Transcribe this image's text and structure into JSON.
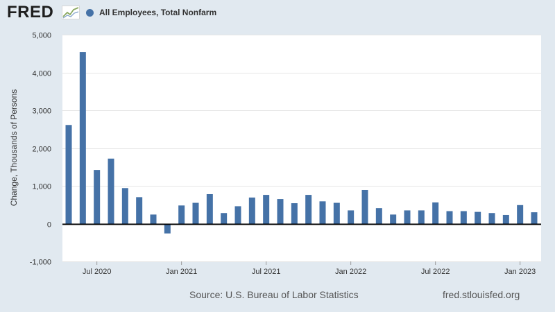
{
  "logo": {
    "text": "FRED"
  },
  "legend": {
    "label": "All Employees, Total Nonfarm",
    "color": "#4572a7"
  },
  "footer": {
    "source": "Source: U.S. Bureau of Labor Statistics",
    "url": "fred.stlouisfed.org"
  },
  "chart_data": {
    "type": "bar",
    "title": "",
    "xlabel": "",
    "ylabel": "Change, Thousands of Persons",
    "ylim": [
      -1000,
      5000
    ],
    "grid": true,
    "yticks": [
      -1000,
      0,
      1000,
      2000,
      3000,
      4000,
      5000
    ],
    "ytick_labels": [
      "-1,000",
      "0",
      "1,000",
      "2,000",
      "3,000",
      "4,000",
      "5,000"
    ],
    "xtick_labels": [
      "Jul 2020",
      "Jan 2021",
      "Jul 2021",
      "Jan 2022",
      "Jul 2022",
      "Jan 2023"
    ],
    "xtick_months": [
      "2020-07",
      "2021-01",
      "2021-07",
      "2022-01",
      "2022-07",
      "2023-01"
    ],
    "months": [
      "2020-05",
      "2020-06",
      "2020-07",
      "2020-08",
      "2020-09",
      "2020-10",
      "2020-11",
      "2020-12",
      "2021-01",
      "2021-02",
      "2021-03",
      "2021-04",
      "2021-05",
      "2021-06",
      "2021-07",
      "2021-08",
      "2021-09",
      "2021-10",
      "2021-11",
      "2021-12",
      "2022-01",
      "2022-02",
      "2022-03",
      "2022-04",
      "2022-05",
      "2022-06",
      "2022-07",
      "2022-08",
      "2022-09",
      "2022-10",
      "2022-11",
      "2022-12",
      "2023-01",
      "2023-02"
    ],
    "series": [
      {
        "values": [
          2610,
          4540,
          1420,
          1720,
          940,
          700,
          240,
          -260,
          480,
          550,
          780,
          280,
          460,
          690,
          760,
          650,
          540,
          760,
          590,
          550,
          350,
          890,
          410,
          240,
          350,
          350,
          560,
          330,
          330,
          310,
          280,
          230,
          490,
          300
        ],
        "color": "#4572a7"
      }
    ]
  }
}
